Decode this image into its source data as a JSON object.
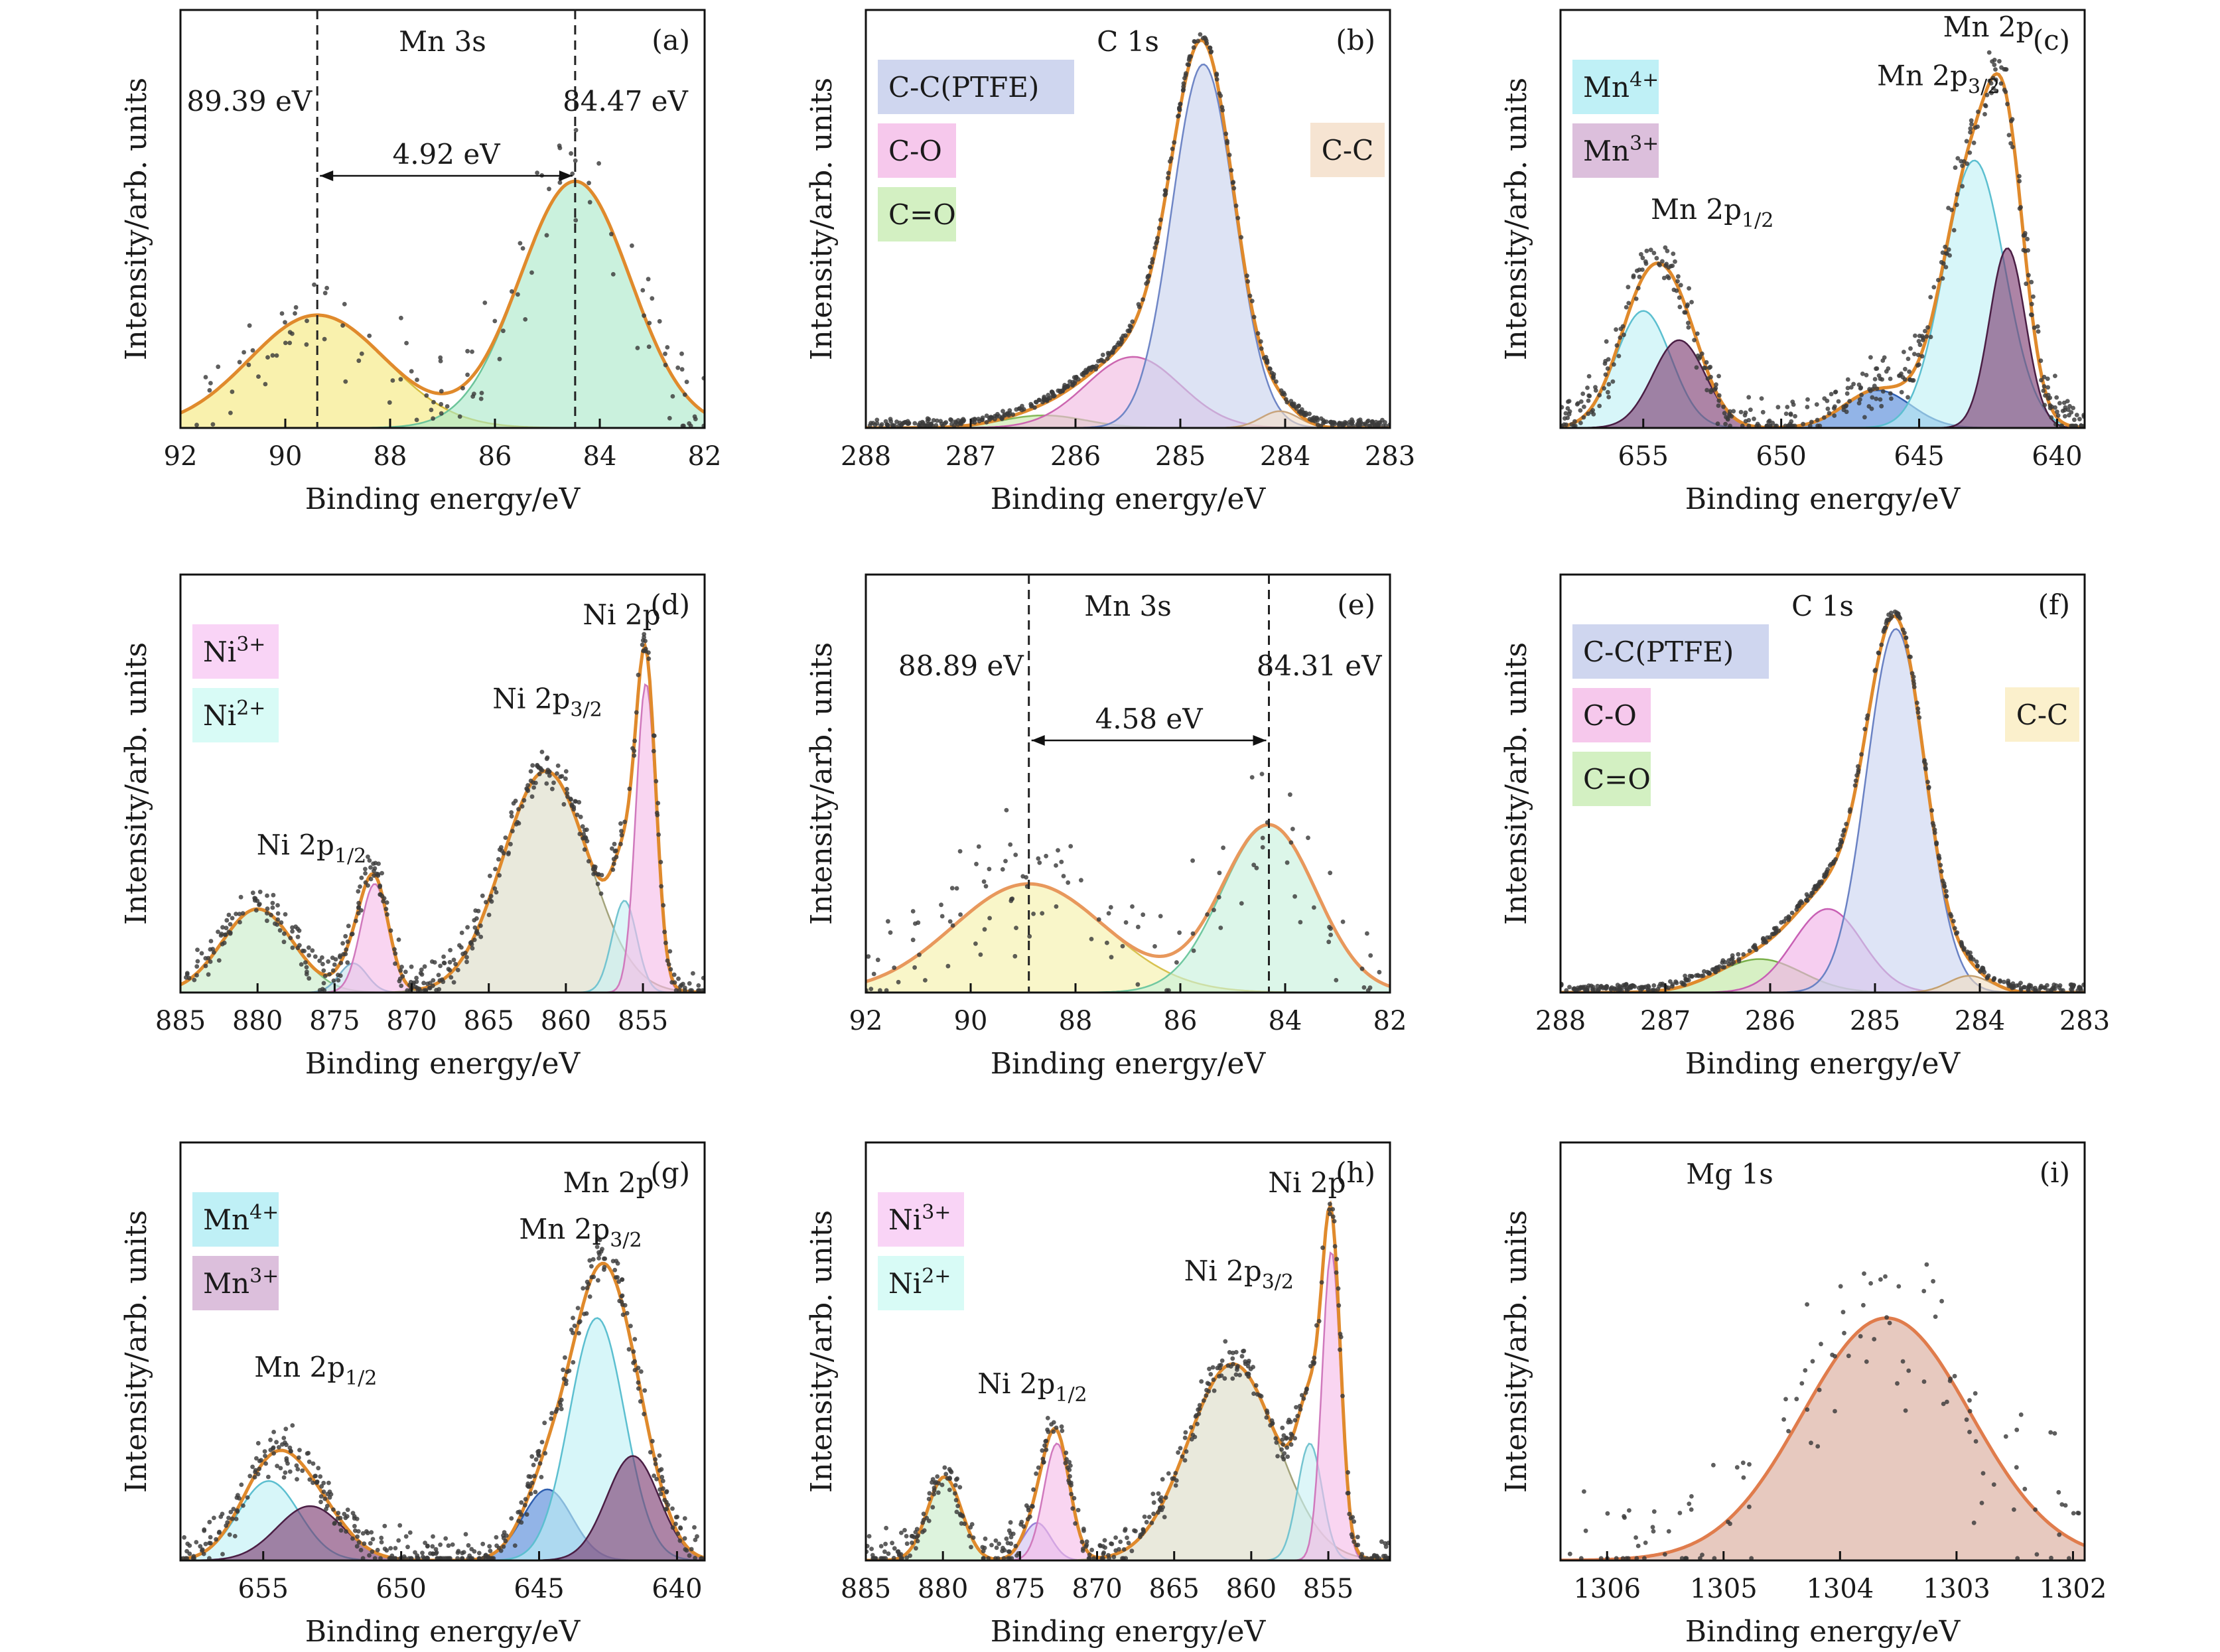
{
  "chart_data": [
    {
      "id": "a",
      "type": "scatter",
      "panel_label": "(a)",
      "title": "Mn 3s",
      "xlabel": "Binding energy/eV",
      "ylabel": "Intensity/arb. units",
      "xlim": [
        92,
        82
      ],
      "xticks": [
        "92",
        "90",
        "88",
        "86",
        "84",
        "82"
      ],
      "ylim": [
        0,
        1
      ],
      "peaks": [
        {
          "center": 89.39,
          "height": 0.27,
          "sigma": 1.3,
          "color": "#f5e97a",
          "edge": "#d6bd3c"
        },
        {
          "center": 84.47,
          "height": 0.59,
          "sigma": 1.05,
          "color": "#a9e8c8",
          "edge": "#6cc49a"
        }
      ],
      "envelope_color": "#e08a2c",
      "noise": 0.075,
      "markers": [
        {
          "x": 89.39,
          "label": "89.39 eV",
          "label_side": "left"
        },
        {
          "x": 84.47,
          "label": "84.47 eV",
          "label_side": "right"
        }
      ],
      "gap_label": "4.92 eV"
    },
    {
      "id": "b",
      "type": "scatter",
      "panel_label": "(b)",
      "title": "C 1s",
      "xlabel": "Binding energy/eV",
      "ylabel": "Intensity/arb. units",
      "xlim": [
        288,
        283
      ],
      "xticks": [
        "288",
        "287",
        "286",
        "285",
        "284",
        "283"
      ],
      "ylim": [
        0,
        1
      ],
      "peaks": [
        {
          "center": 286.3,
          "height": 0.03,
          "sigma": 0.4,
          "color": "#c8e8a8",
          "edge": "#86b85a"
        },
        {
          "center": 285.45,
          "height": 0.17,
          "sigma": 0.45,
          "color": "#f0b8e0",
          "edge": "#cc66b0"
        },
        {
          "center": 284.78,
          "height": 0.87,
          "sigma": 0.3,
          "color": "#c8d2ee",
          "edge": "#6f86c6"
        },
        {
          "center": 284.05,
          "height": 0.04,
          "sigma": 0.18,
          "color": "#f3dfc8",
          "edge": "#c8a47c"
        }
      ],
      "envelope_color": "#e08a2c",
      "noise": 0.006,
      "legend": [
        {
          "label": "C-C(PTFE)",
          "color": "#cfd6ef"
        },
        {
          "label": "C-O",
          "color": "#f6c8ec"
        },
        {
          "label": "C=O",
          "color": "#d3f0c2"
        }
      ],
      "side_tag": {
        "label": "C-C",
        "color": "#f6e4d2"
      }
    },
    {
      "id": "c",
      "type": "scatter",
      "panel_label": "(c)",
      "title": "Mn 2p",
      "xlabel": "Binding energy/eV",
      "ylabel": "Intensity/arb. units",
      "xlim": [
        658,
        639
      ],
      "xticks": [
        "655",
        "650",
        "645",
        "640"
      ],
      "ylim": [
        0,
        1
      ],
      "peaks": [
        {
          "center": 655.0,
          "height": 0.28,
          "sigma": 1.0,
          "color": "#bff0f6",
          "edge": "#5cbfd0"
        },
        {
          "center": 653.7,
          "height": 0.21,
          "sigma": 0.95,
          "color": "#7a3870",
          "edge": "#4a1e44"
        },
        {
          "center": 646.5,
          "height": 0.09,
          "sigma": 1.2,
          "color": "#4f86d8",
          "edge": "#2f5fb0"
        },
        {
          "center": 643.0,
          "height": 0.64,
          "sigma": 1.1,
          "color": "#bff0f6",
          "edge": "#5cbfd0"
        },
        {
          "center": 641.8,
          "height": 0.43,
          "sigma": 0.65,
          "color": "#7a3870",
          "edge": "#4a1e44"
        }
      ],
      "envelope_color": "#e08a2c",
      "noise": 0.04,
      "legend": [
        {
          "label": "Mn",
          "sup": "4+",
          "color": "#bff0f6"
        },
        {
          "label": "Mn",
          "sup": "3+",
          "color": "#dcbfdc"
        }
      ],
      "peak_labels": [
        {
          "text": "Mn 2p",
          "sub": "3/2",
          "x": 644.3,
          "y": 0.82
        },
        {
          "text": "Mn 2p",
          "sub": "1/2",
          "x": 652.5,
          "y": 0.5
        }
      ]
    },
    {
      "id": "d",
      "type": "scatter",
      "panel_label": "(d)",
      "title": "Ni 2p",
      "xlabel": "Binding energy/eV",
      "ylabel": "Intensity/arb. units",
      "xlim": [
        885,
        851
      ],
      "xticks": [
        "885",
        "880",
        "875",
        "870",
        "865",
        "860",
        "855"
      ],
      "ylim": [
        0,
        1
      ],
      "peaks": [
        {
          "center": 880.0,
          "height": 0.2,
          "sigma": 2.3,
          "color": "#c8ecc8",
          "edge": "#84c284"
        },
        {
          "center": 873.8,
          "height": 0.07,
          "sigma": 0.9,
          "color": "#c8e0ee",
          "edge": "#7ab0cc"
        },
        {
          "center": 872.4,
          "height": 0.26,
          "sigma": 0.9,
          "color": "#f6bce8",
          "edge": "#d079bd"
        },
        {
          "center": 861.3,
          "height": 0.53,
          "sigma": 2.8,
          "color": "#dcdcc6",
          "edge": "#a4a47c"
        },
        {
          "center": 856.2,
          "height": 0.22,
          "sigma": 0.8,
          "color": "#c8f0f4",
          "edge": "#74c4d0"
        },
        {
          "center": 854.8,
          "height": 0.74,
          "sigma": 0.65,
          "color": "#f6bce8",
          "edge": "#d079bd"
        }
      ],
      "envelope_color": "#e08a2c",
      "noise": 0.03,
      "legend": [
        {
          "label": "Ni",
          "sup": "3+",
          "color": "#f9d4f6"
        },
        {
          "label": "Ni",
          "sup": "2+",
          "color": "#d8fbf6"
        }
      ],
      "peak_labels": [
        {
          "text": "Ni 2p",
          "sub": "3/2",
          "x": 861.2,
          "y": 0.68
        },
        {
          "text": "Ni 2p",
          "sub": "1/2",
          "x": 876.5,
          "y": 0.33
        }
      ]
    },
    {
      "id": "e",
      "type": "scatter",
      "panel_label": "(e)",
      "title": "Mn 3s",
      "xlabel": "Binding energy/eV",
      "ylabel": "Intensity/arb. units",
      "xlim": [
        92,
        82
      ],
      "xticks": [
        "92",
        "90",
        "88",
        "86",
        "84",
        "82"
      ],
      "ylim": [
        0,
        1
      ],
      "peaks": [
        {
          "center": 88.89,
          "height": 0.26,
          "sigma": 1.45,
          "color": "#f5f0a8",
          "edge": "#d8c250"
        },
        {
          "center": 84.31,
          "height": 0.4,
          "sigma": 0.9,
          "color": "#c6f0dc",
          "edge": "#70c8a0"
        }
      ],
      "envelope_color": "#e8985c",
      "noise": 0.09,
      "markers": [
        {
          "x": 88.89,
          "label": "88.89 eV",
          "label_side": "left"
        },
        {
          "x": 84.31,
          "label": "84.31 eV",
          "label_side": "right"
        }
      ],
      "gap_label": "4.58 eV"
    },
    {
      "id": "f",
      "type": "scatter",
      "panel_label": "(f)",
      "title": "C 1s",
      "xlabel": "Binding energy/eV",
      "ylabel": "Intensity/arb. units",
      "xlim": [
        288,
        283
      ],
      "xticks": [
        "288",
        "287",
        "286",
        "285",
        "284",
        "283"
      ],
      "ylim": [
        0,
        1
      ],
      "peaks": [
        {
          "center": 286.1,
          "height": 0.08,
          "sigma": 0.4,
          "color": "#bfe6a0",
          "edge": "#7ab04a"
        },
        {
          "center": 285.45,
          "height": 0.2,
          "sigma": 0.33,
          "color": "#f0b0e6",
          "edge": "#c860b4"
        },
        {
          "center": 284.8,
          "height": 0.87,
          "sigma": 0.28,
          "color": "#cad4f0",
          "edge": "#6a82c4"
        },
        {
          "center": 284.1,
          "height": 0.04,
          "sigma": 0.2,
          "color": "#f0dcc0",
          "edge": "#c4a070"
        }
      ],
      "envelope_color": "#e08a2c",
      "noise": 0.006,
      "legend": [
        {
          "label": "C-C(PTFE)",
          "color": "#cfd6ef"
        },
        {
          "label": "C-O",
          "color": "#f6c8ec"
        },
        {
          "label": "C=O",
          "color": "#d3f0c2"
        }
      ],
      "side_tag": {
        "label": "C-C",
        "color": "#fbf0cc"
      }
    },
    {
      "id": "g",
      "type": "scatter",
      "panel_label": "(g)",
      "title": "Mn 2p",
      "xlabel": "Binding energy/eV",
      "ylabel": "Intensity/arb. units",
      "xlim": [
        658,
        639
      ],
      "xticks": [
        "655",
        "650",
        "645",
        "640"
      ],
      "ylim": [
        0,
        1
      ],
      "peaks": [
        {
          "center": 654.8,
          "height": 0.19,
          "sigma": 1.1,
          "color": "#bff0f6",
          "edge": "#5cbfd0"
        },
        {
          "center": 653.3,
          "height": 0.13,
          "sigma": 1.2,
          "color": "#7a3870",
          "edge": "#4a1e44"
        },
        {
          "center": 644.7,
          "height": 0.17,
          "sigma": 0.9,
          "color": "#4f86d8",
          "edge": "#2f5fb0"
        },
        {
          "center": 642.9,
          "height": 0.58,
          "sigma": 1.0,
          "color": "#bff0f6",
          "edge": "#5cbfd0"
        },
        {
          "center": 641.6,
          "height": 0.25,
          "sigma": 0.95,
          "color": "#7a3870",
          "edge": "#4a1e44"
        }
      ],
      "envelope_color": "#e08a2c",
      "noise": 0.035,
      "legend": [
        {
          "label": "Mn",
          "sup": "4+",
          "color": "#bff0f6"
        },
        {
          "label": "Mn",
          "sup": "3+",
          "color": "#dcbfdc"
        }
      ],
      "peak_labels": [
        {
          "text": "Mn 2p",
          "sub": "3/2",
          "x": 643.5,
          "y": 0.77
        },
        {
          "text": "Mn 2p",
          "sub": "1/2",
          "x": 653.1,
          "y": 0.44
        }
      ]
    },
    {
      "id": "h",
      "type": "scatter",
      "panel_label": "(h)",
      "title": "Ni 2p",
      "xlabel": "Binding energy/eV",
      "ylabel": "Intensity/arb. units",
      "xlim": [
        885,
        851
      ],
      "xticks": [
        "885",
        "880",
        "875",
        "870",
        "865",
        "860",
        "855"
      ],
      "ylim": [
        0,
        1
      ],
      "peaks": [
        {
          "center": 879.9,
          "height": 0.2,
          "sigma": 1.1,
          "color": "#c8ecc8",
          "edge": "#84c284"
        },
        {
          "center": 873.9,
          "height": 0.09,
          "sigma": 0.9,
          "color": "#d0c0f0",
          "edge": "#9a80d8"
        },
        {
          "center": 872.6,
          "height": 0.28,
          "sigma": 0.85,
          "color": "#f6bce8",
          "edge": "#d079bd"
        },
        {
          "center": 861.2,
          "height": 0.47,
          "sigma": 2.9,
          "color": "#dcdcc6",
          "edge": "#a4a47c"
        },
        {
          "center": 856.2,
          "height": 0.28,
          "sigma": 0.8,
          "color": "#c8f0f4",
          "edge": "#74c4d0"
        },
        {
          "center": 854.8,
          "height": 0.74,
          "sigma": 0.6,
          "color": "#f6bce8",
          "edge": "#d079bd"
        }
      ],
      "envelope_color": "#e08a2c",
      "noise": 0.03,
      "legend": [
        {
          "label": "Ni",
          "sup": "3+",
          "color": "#f9d4f6"
        },
        {
          "label": "Ni",
          "sup": "2+",
          "color": "#d8fbf6"
        }
      ],
      "peak_labels": [
        {
          "text": "Ni 2p",
          "sub": "3/2",
          "x": 860.8,
          "y": 0.67
        },
        {
          "text": "Ni 2p",
          "sub": "1/2",
          "x": 874.2,
          "y": 0.4
        }
      ]
    },
    {
      "id": "i",
      "type": "scatter",
      "panel_label": "(i)",
      "title": "Mg 1s",
      "xlabel": "Binding energy/eV",
      "ylabel": "Intensity/arb. units",
      "xlim": [
        1306.4,
        1301.9
      ],
      "xticks": [
        "1306",
        "1305",
        "1304",
        "1303",
        "1302"
      ],
      "ylim": [
        0,
        1
      ],
      "peaks": [
        {
          "center": 1303.6,
          "height": 0.58,
          "sigma": 0.72,
          "color": "#d8a898",
          "edge": "#e07c4c"
        }
      ],
      "envelope_color": "#e07c4c",
      "noise": 0.13
    }
  ]
}
